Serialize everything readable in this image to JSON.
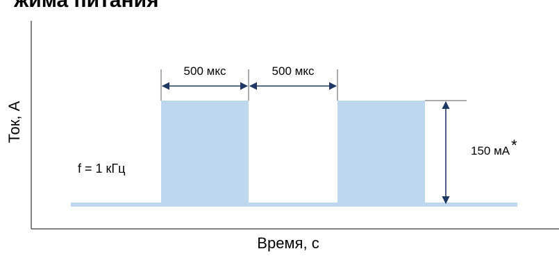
{
  "header": {
    "title_fragment": "жима питания"
  },
  "axes": {
    "y_label": "Ток, А",
    "x_label": "Время, с"
  },
  "annotations": {
    "frequency": "f = 1 кГц",
    "pulse_width": "500 мкс",
    "pulse_gap": "500 мкс",
    "amplitude": "150 мА",
    "amplitude_mark": "*"
  },
  "colors": {
    "pulse_fill": "#bdd7ee",
    "baseline": "#bdd7ee",
    "dimension_arrow": "#1f3864",
    "axis": "#595959",
    "text": "#000000"
  },
  "chart_data": {
    "type": "area",
    "title": "",
    "xlabel": "Время, с",
    "ylabel": "Ток, А",
    "frequency_khz": 1,
    "pulse_width_us": 500,
    "gap_us": 500,
    "amplitude_ma": 150,
    "pulses_shown": 2
  }
}
